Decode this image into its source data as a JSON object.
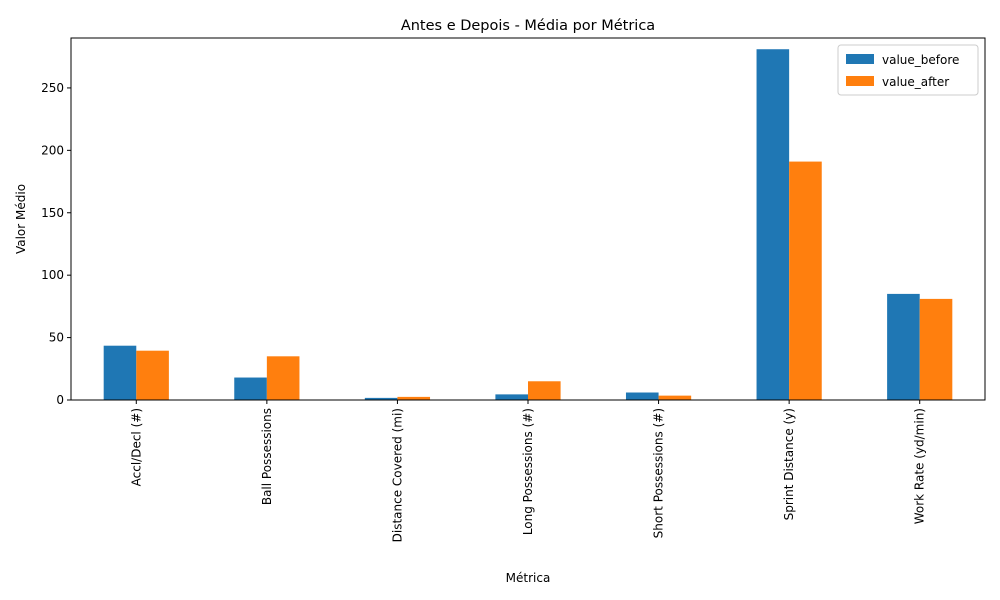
{
  "chart_data": {
    "type": "bar",
    "title": "Antes e Depois - Média por Métrica",
    "xlabel": "Métrica",
    "ylabel": "Valor Médio",
    "categories": [
      "Accl/Decl (#)",
      "Ball Possessions",
      "Distance Covered (mi)",
      "Long Possessions (#)",
      "Short Possessions (#)",
      "Sprint Distance (y)",
      "Work Rate (yd/min)"
    ],
    "series": [
      {
        "name": "value_before",
        "color": "#1f77b4",
        "values": [
          43.5,
          18.0,
          1.7,
          4.5,
          6.0,
          281.0,
          85.0
        ]
      },
      {
        "name": "value_after",
        "color": "#ff7f0e",
        "values": [
          39.5,
          35.0,
          2.5,
          15.0,
          3.5,
          191.0,
          81.0
        ]
      }
    ],
    "ylim": [
      0,
      290
    ],
    "yticks": [
      0,
      50,
      100,
      150,
      200,
      250
    ],
    "legend": "top-right",
    "grid": false
  }
}
